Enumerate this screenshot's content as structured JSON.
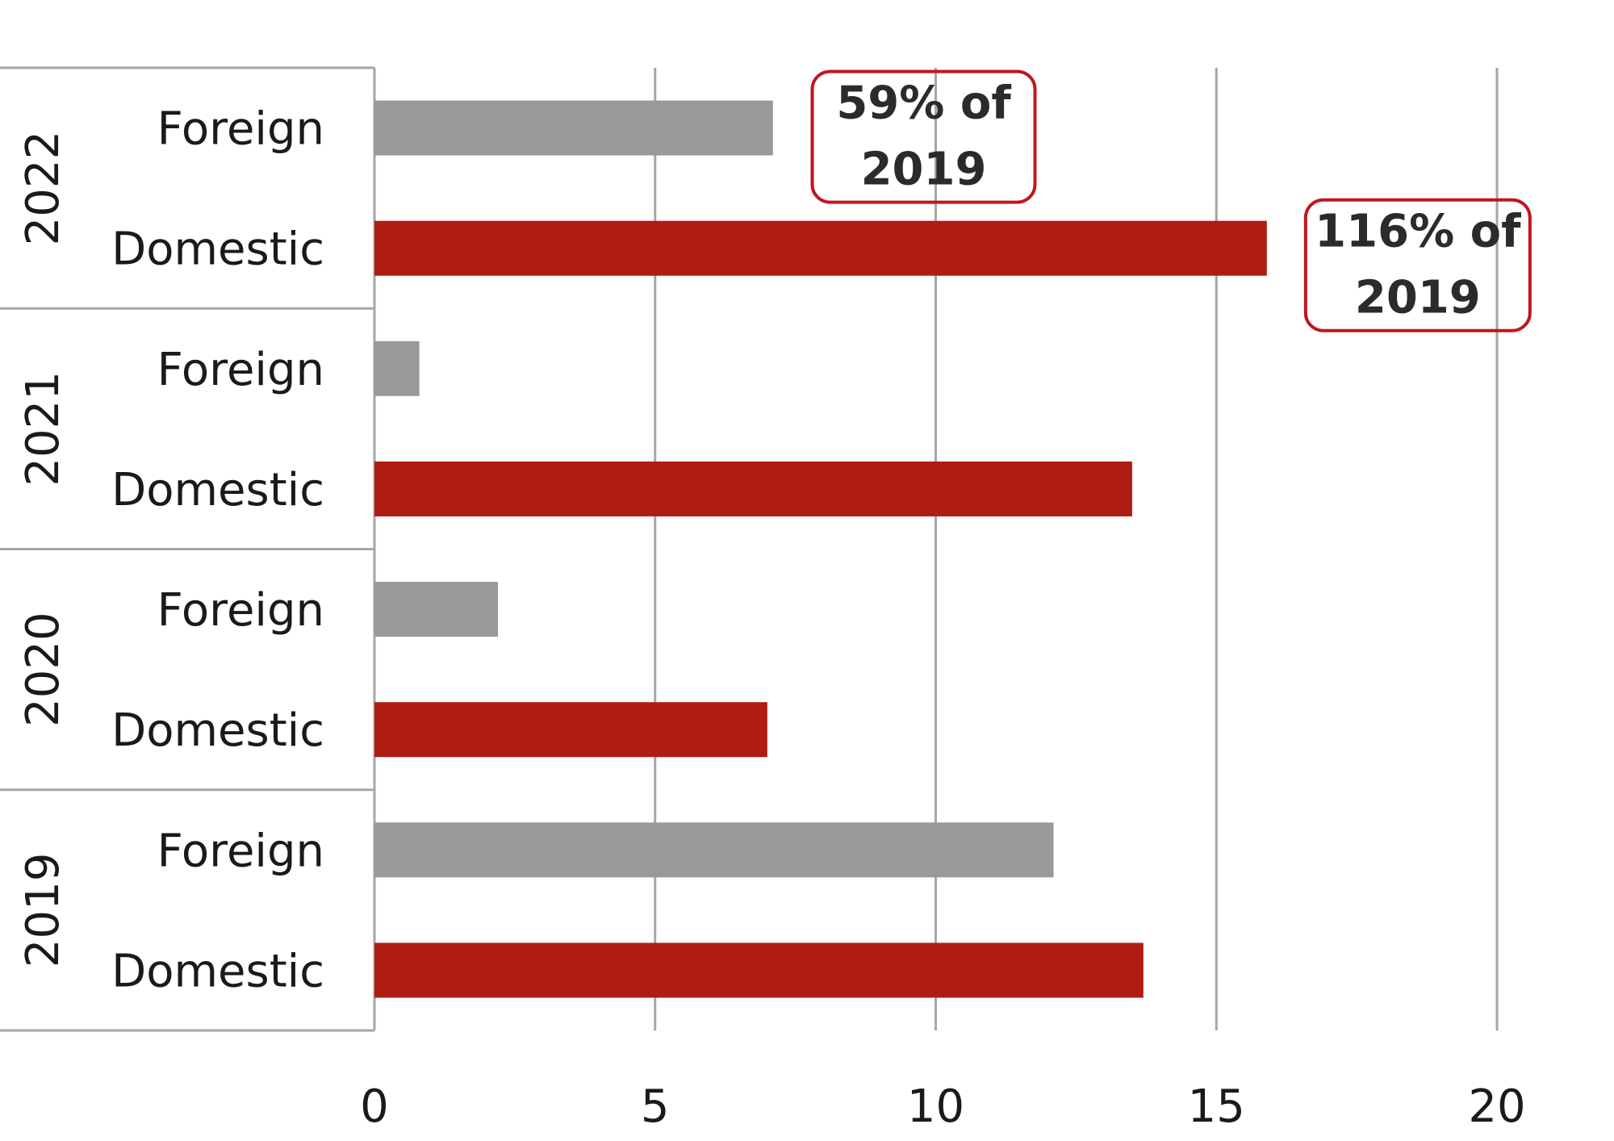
{
  "chart_data": {
    "type": "bar",
    "orientation": "horizontal",
    "title": "",
    "xlabel": "",
    "ylabel": "",
    "xlim": [
      0,
      20
    ],
    "x_ticks": [
      "0",
      "5",
      "10",
      "15",
      "20"
    ],
    "grid": true,
    "groups": [
      {
        "year": "2022",
        "bars": [
          {
            "label": "Foreign",
            "value": 7.1,
            "color": "#999999"
          },
          {
            "label": "Domestic",
            "value": 15.9,
            "color": "#ae1c14"
          }
        ]
      },
      {
        "year": "2021",
        "bars": [
          {
            "label": "Foreign",
            "value": 0.8,
            "color": "#999999"
          },
          {
            "label": "Domestic",
            "value": 13.5,
            "color": "#ae1c14"
          }
        ]
      },
      {
        "year": "2020",
        "bars": [
          {
            "label": "Foreign",
            "value": 2.2,
            "color": "#999999"
          },
          {
            "label": "Domestic",
            "value": 7.0,
            "color": "#ae1c14"
          }
        ]
      },
      {
        "year": "2019",
        "bars": [
          {
            "label": "Foreign",
            "value": 12.1,
            "color": "#999999"
          },
          {
            "label": "Domestic",
            "value": 13.7,
            "color": "#ae1c14"
          }
        ]
      }
    ],
    "annotations": [
      {
        "lines": [
          "59% of",
          "2019"
        ],
        "target": "2022 Foreign"
      },
      {
        "lines": [
          "116% of",
          "2019"
        ],
        "target": "2022 Domestic"
      }
    ],
    "colors": {
      "foreign": "#999999",
      "domestic": "#ae1c14",
      "grid": "#a6a6a6",
      "annotation_border": "#c0161c"
    }
  }
}
